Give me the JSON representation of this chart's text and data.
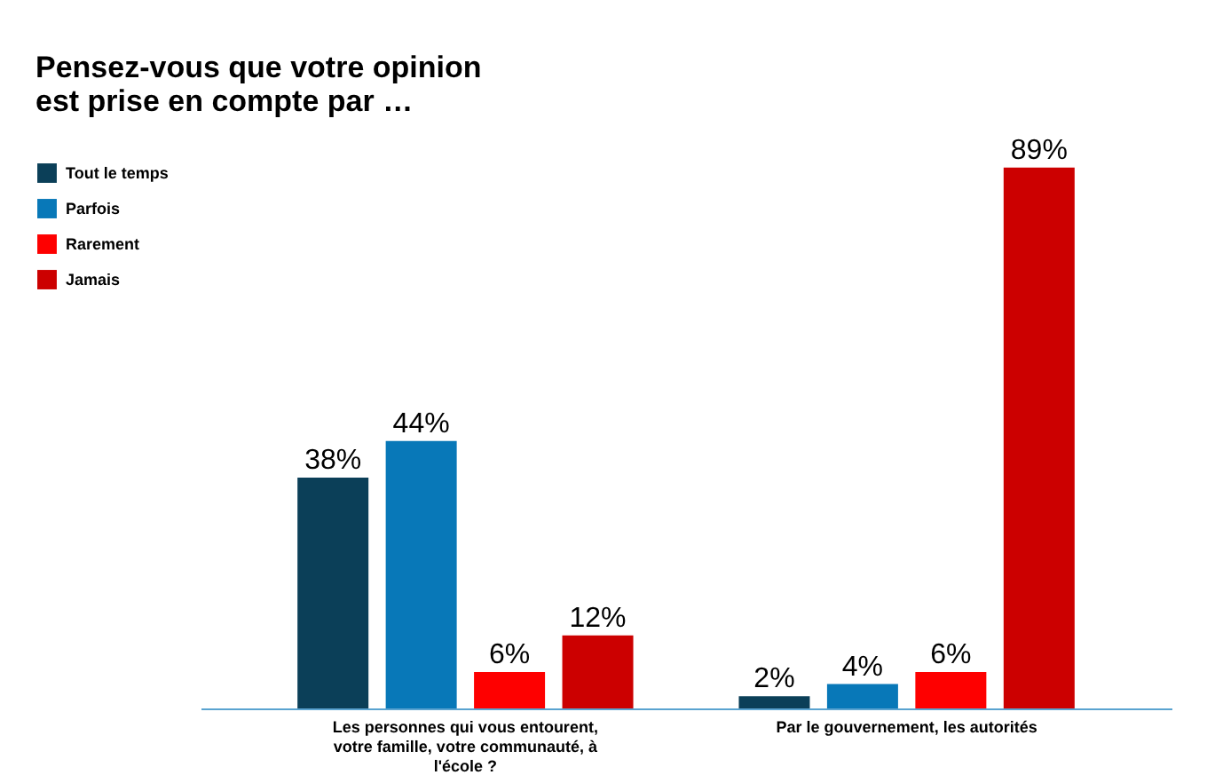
{
  "chart_data": {
    "type": "bar",
    "title": "Pensez-vous que votre opinion\nest prise en compte par …",
    "categories": [
      "Les personnes qui vous entourent, votre famille, votre communauté, à l'école ?",
      "Par le gouvernement, les autorités"
    ],
    "series": [
      {
        "name": "Tout le temps",
        "color": "#0b3f58",
        "values": [
          38,
          2
        ],
        "value_labels": [
          "38%",
          "2%"
        ]
      },
      {
        "name": "Parfois",
        "color": "#0878b8",
        "values": [
          44,
          4
        ],
        "value_labels": [
          "44%",
          "4%"
        ]
      },
      {
        "name": "Rarement",
        "color": "#fe0000",
        "values": [
          6,
          6
        ],
        "value_labels": [
          "6%",
          "6%"
        ]
      },
      {
        "name": "Jamais",
        "color": "#cc0000",
        "values": [
          12,
          89
        ],
        "value_labels": [
          "12%",
          "89%"
        ]
      }
    ],
    "legend": "left",
    "grid": false
  }
}
